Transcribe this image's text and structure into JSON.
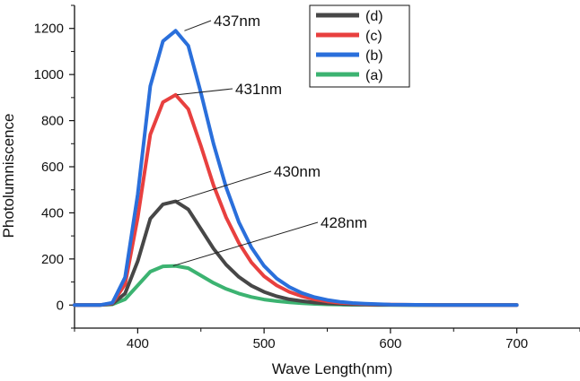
{
  "chart_data": {
    "type": "line",
    "xlabel": "Wave Length(nm)",
    "ylabel": "Photolumniscence",
    "xlim": [
      350,
      750
    ],
    "ylim": [
      -100,
      1300
    ],
    "xticks": [
      400,
      500,
      600,
      700
    ],
    "yticks": [
      0,
      200,
      400,
      600,
      800,
      1000,
      1200
    ],
    "x_minor_ticks": [
      350,
      450,
      550,
      650,
      750
    ],
    "y_minor_ticks": [
      -100,
      100,
      300,
      500,
      700,
      900,
      1100,
      1300
    ],
    "x_tick_labels": [
      "400",
      "500",
      "600",
      "700"
    ],
    "y_tick_labels": [
      "0",
      "200",
      "400",
      "600",
      "800",
      "1000",
      "1200"
    ],
    "grid": false,
    "legend_position": "top-right",
    "legend_order": [
      "(d)",
      "(c)",
      "(b)",
      "(a)"
    ],
    "series": [
      {
        "name": "(b)",
        "color": "#2a6fdb",
        "x": [
          350,
          360,
          370,
          380,
          390,
          400,
          410,
          420,
          430,
          440,
          450,
          460,
          470,
          480,
          490,
          500,
          510,
          520,
          530,
          540,
          550,
          560,
          570,
          580,
          590,
          600,
          620,
          640,
          660,
          680,
          700
        ],
        "y": [
          0,
          0,
          0,
          10,
          120,
          480,
          950,
          1145,
          1190,
          1125,
          920,
          700,
          510,
          360,
          250,
          170,
          115,
          78,
          52,
          34,
          22,
          14,
          9,
          6,
          4,
          2,
          1,
          0,
          0,
          0,
          0
        ]
      },
      {
        "name": "(c)",
        "color": "#e8403f",
        "x": [
          350,
          360,
          370,
          380,
          390,
          400,
          410,
          420,
          430,
          440,
          450,
          460,
          470,
          480,
          490,
          500,
          510,
          520,
          530,
          540,
          550,
          560,
          570,
          580,
          590,
          600,
          620,
          640,
          660,
          680,
          700
        ],
        "y": [
          0,
          0,
          0,
          8,
          90,
          380,
          740,
          880,
          912,
          850,
          690,
          520,
          380,
          270,
          185,
          125,
          85,
          57,
          38,
          25,
          16,
          10,
          7,
          4,
          3,
          2,
          1,
          0,
          0,
          0,
          0
        ]
      },
      {
        "name": "(d)",
        "color": "#474747",
        "x": [
          350,
          360,
          370,
          380,
          390,
          400,
          410,
          420,
          430,
          440,
          450,
          460,
          470,
          480,
          490,
          500,
          510,
          520,
          530,
          540,
          550,
          560,
          570,
          580,
          590,
          600,
          620,
          640,
          660,
          680,
          700
        ],
        "y": [
          0,
          0,
          0,
          5,
          50,
          190,
          375,
          437,
          450,
          415,
          330,
          245,
          175,
          122,
          84,
          57,
          38,
          25,
          17,
          11,
          7,
          5,
          3,
          2,
          1,
          1,
          0,
          0,
          0,
          0,
          0
        ]
      },
      {
        "name": "(a)",
        "color": "#3cb371",
        "x": [
          350,
          360,
          370,
          380,
          390,
          400,
          410,
          420,
          430,
          440,
          450,
          460,
          470,
          480,
          490,
          500,
          510,
          520,
          530,
          540,
          550,
          560,
          570,
          580,
          590,
          600,
          620,
          640,
          660,
          680,
          700
        ],
        "y": [
          0,
          0,
          0,
          3,
          25,
          85,
          145,
          168,
          170,
          160,
          128,
          96,
          70,
          50,
          35,
          24,
          17,
          12,
          8,
          5,
          3,
          2,
          1,
          1,
          0,
          0,
          0,
          0,
          0,
          0,
          0
        ]
      }
    ],
    "annotations": [
      {
        "text": "437nm",
        "x": 437,
        "y": 1190
      },
      {
        "text": "431nm",
        "x": 431,
        "y": 912
      },
      {
        "text": "430nm",
        "x": 430,
        "y": 450
      },
      {
        "text": "428nm",
        "x": 428,
        "y": 170
      }
    ]
  }
}
